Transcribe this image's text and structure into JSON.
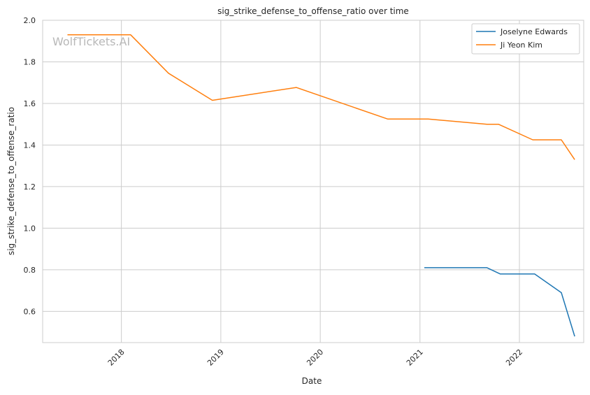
{
  "chart_data": {
    "type": "line",
    "title": "sig_strike_defense_to_offense_ratio over time",
    "xlabel": "Date",
    "ylabel": "sig_strike_defense_to_offense_ratio",
    "watermark": "WolfTickets.AI",
    "x_type": "date",
    "xlim": [
      "2017-03-18",
      "2022-08-25"
    ],
    "ylim": [
      0.45,
      2.0
    ],
    "x_ticks": [
      "2018-01-01",
      "2019-01-01",
      "2020-01-01",
      "2021-01-01",
      "2022-01-01"
    ],
    "x_tick_labels": [
      "2018",
      "2019",
      "2020",
      "2021",
      "2022"
    ],
    "y_ticks": [
      0.6,
      0.8,
      1.0,
      1.2,
      1.4,
      1.6,
      1.8,
      2.0
    ],
    "y_tick_labels": [
      "0.6",
      "0.8",
      "1.0",
      "1.2",
      "1.4",
      "1.6",
      "1.8",
      "2.0"
    ],
    "grid": true,
    "legend_position": "top-right",
    "series": [
      {
        "name": "Joselyne Edwards",
        "color": "#1f77b4",
        "points": [
          {
            "x": "2021-01-17",
            "y": 0.81
          },
          {
            "x": "2021-09-04",
            "y": 0.81
          },
          {
            "x": "2021-10-23",
            "y": 0.78
          },
          {
            "x": "2022-02-26",
            "y": 0.78
          },
          {
            "x": "2022-06-04",
            "y": 0.69
          },
          {
            "x": "2022-07-23",
            "y": 0.48
          }
        ]
      },
      {
        "name": "Ji Yeon Kim",
        "color": "#ff7f0e",
        "points": [
          {
            "x": "2017-06-17",
            "y": 1.93
          },
          {
            "x": "2018-02-04",
            "y": 1.93
          },
          {
            "x": "2018-06-23",
            "y": 1.745
          },
          {
            "x": "2018-12-01",
            "y": 1.615
          },
          {
            "x": "2019-10-05",
            "y": 1.677
          },
          {
            "x": "2020-09-05",
            "y": 1.525
          },
          {
            "x": "2021-01-31",
            "y": 1.525
          },
          {
            "x": "2021-09-04",
            "y": 1.5
          },
          {
            "x": "2021-10-16",
            "y": 1.5
          },
          {
            "x": "2022-02-19",
            "y": 1.425
          },
          {
            "x": "2022-06-04",
            "y": 1.425
          },
          {
            "x": "2022-07-23",
            "y": 1.33
          }
        ]
      }
    ]
  }
}
